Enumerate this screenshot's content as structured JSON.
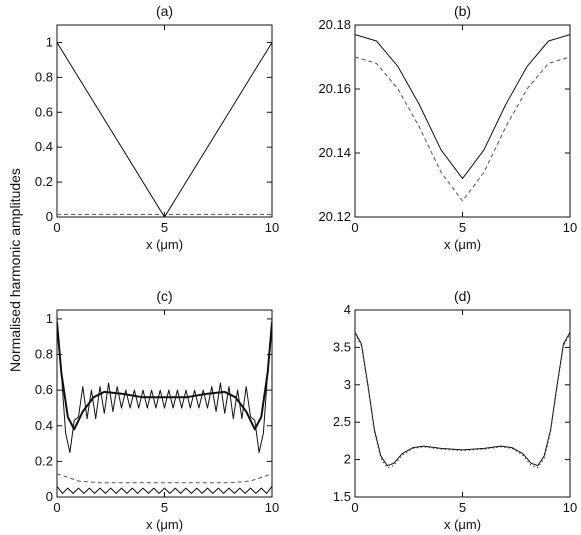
{
  "figure": {
    "ylabel": "Normalised harmonic amplitudes"
  },
  "chart_data": [
    {
      "type": "line",
      "title": "(a)",
      "xlabel": "x (μm)",
      "ylabel": "",
      "xlim": [
        0,
        10
      ],
      "ylim": [
        0,
        1.1
      ],
      "xticks": [
        0,
        5,
        10
      ],
      "yticks": [
        0,
        0.2,
        0.4,
        0.6,
        0.8,
        1
      ],
      "xtick_labels": [
        "0",
        "5",
        "10"
      ],
      "ytick_labels": [
        "0",
        "0.2",
        "0.4",
        "0.6",
        "0.8",
        "1"
      ],
      "grid": false,
      "series": [
        {
          "style": "solid",
          "x": [
            0,
            5,
            10
          ],
          "y": [
            1.0,
            0.0,
            1.0
          ]
        },
        {
          "style": "dashed",
          "x": [
            0,
            10
          ],
          "y": [
            0.015,
            0.015
          ]
        }
      ]
    },
    {
      "type": "line",
      "title": "(b)",
      "xlabel": "x (μm)",
      "ylabel": "",
      "xlim": [
        0,
        10
      ],
      "ylim": [
        20.12,
        20.18
      ],
      "xticks": [
        0,
        5,
        10
      ],
      "yticks": [
        20.12,
        20.14,
        20.16,
        20.18
      ],
      "xtick_labels": [
        "0",
        "5",
        "10"
      ],
      "ytick_labels": [
        "20.12",
        "20.14",
        "20.16",
        "20.18"
      ],
      "grid": false,
      "series": [
        {
          "style": "solid",
          "x": [
            0,
            1,
            2,
            3,
            4,
            5,
            6,
            7,
            8,
            9,
            10
          ],
          "y": [
            20.177,
            20.175,
            20.167,
            20.155,
            20.141,
            20.132,
            20.141,
            20.155,
            20.167,
            20.175,
            20.177
          ]
        },
        {
          "style": "dashed",
          "x": [
            0,
            1,
            2,
            3,
            4,
            5,
            6,
            7,
            8,
            9,
            10
          ],
          "y": [
            20.17,
            20.168,
            20.16,
            20.148,
            20.134,
            20.125,
            20.134,
            20.148,
            20.16,
            20.168,
            20.17
          ]
        }
      ]
    },
    {
      "type": "line",
      "title": "(c)",
      "xlabel": "x (μm)",
      "ylabel": "",
      "xlim": [
        0,
        10
      ],
      "ylim": [
        0,
        1.05
      ],
      "xticks": [
        0,
        5,
        10
      ],
      "yticks": [
        0,
        0.2,
        0.4,
        0.6,
        0.8,
        1
      ],
      "xtick_labels": [
        "0",
        "5",
        "10"
      ],
      "ytick_labels": [
        "0",
        "0.2",
        "0.4",
        "0.6",
        "0.8",
        "1"
      ],
      "grid": false,
      "series": [
        {
          "style": "solid-thick",
          "x": [
            0,
            0.2,
            0.5,
            0.8,
            1.2,
            1.7,
            2.2,
            3,
            4,
            5,
            6,
            7,
            7.8,
            8.3,
            8.8,
            9.2,
            9.5,
            9.8,
            10
          ],
          "y": [
            0.98,
            0.7,
            0.45,
            0.38,
            0.48,
            0.56,
            0.59,
            0.58,
            0.56,
            0.56,
            0.56,
            0.58,
            0.59,
            0.56,
            0.48,
            0.38,
            0.45,
            0.7,
            0.98
          ]
        },
        {
          "style": "solid-oscillating",
          "x": [
            0,
            0.2,
            0.4,
            0.6,
            0.8,
            1,
            1.2,
            1.4,
            1.6,
            1.8,
            2,
            2.2,
            2.4,
            2.6,
            2.8,
            3,
            3.2,
            3.4,
            3.6,
            3.8,
            4,
            4.2,
            4.4,
            4.6,
            4.8,
            5,
            5.2,
            5.4,
            5.6,
            5.8,
            6,
            6.2,
            6.4,
            6.6,
            6.8,
            7,
            7.2,
            7.4,
            7.6,
            7.8,
            8,
            8.2,
            8.4,
            8.6,
            8.8,
            9,
            9.2,
            9.4,
            9.6,
            9.8,
            10
          ],
          "y": [
            1.0,
            0.7,
            0.36,
            0.25,
            0.43,
            0.45,
            0.62,
            0.44,
            0.6,
            0.44,
            0.62,
            0.47,
            0.64,
            0.48,
            0.62,
            0.5,
            0.6,
            0.5,
            0.6,
            0.5,
            0.6,
            0.5,
            0.6,
            0.5,
            0.6,
            0.5,
            0.6,
            0.5,
            0.6,
            0.5,
            0.6,
            0.5,
            0.6,
            0.5,
            0.6,
            0.5,
            0.62,
            0.48,
            0.64,
            0.47,
            0.62,
            0.44,
            0.6,
            0.44,
            0.62,
            0.45,
            0.43,
            0.25,
            0.36,
            0.7,
            1.0
          ]
        },
        {
          "style": "dashed",
          "x": [
            0,
            0.5,
            1,
            2,
            3,
            4,
            5,
            6,
            7,
            8,
            9,
            9.5,
            10
          ],
          "y": [
            0.13,
            0.11,
            0.09,
            0.08,
            0.08,
            0.08,
            0.08,
            0.08,
            0.08,
            0.08,
            0.09,
            0.11,
            0.13
          ]
        },
        {
          "style": "solid-thin",
          "x": [
            0,
            0.25,
            0.5,
            0.75,
            1,
            1.25,
            1.5,
            1.75,
            2,
            2.25,
            2.5,
            2.75,
            3,
            3.25,
            3.5,
            3.75,
            4,
            4.25,
            4.5,
            4.75,
            5,
            5.25,
            5.5,
            5.75,
            6,
            6.25,
            6.5,
            6.75,
            7,
            7.25,
            7.5,
            7.75,
            8,
            8.25,
            8.5,
            8.75,
            9,
            9.25,
            9.5,
            9.75,
            10
          ],
          "y": [
            0.06,
            0.02,
            0.05,
            0.02,
            0.05,
            0.02,
            0.05,
            0.02,
            0.05,
            0.02,
            0.05,
            0.02,
            0.05,
            0.02,
            0.05,
            0.02,
            0.05,
            0.02,
            0.05,
            0.02,
            0.05,
            0.02,
            0.05,
            0.02,
            0.05,
            0.02,
            0.05,
            0.02,
            0.05,
            0.02,
            0.05,
            0.02,
            0.05,
            0.02,
            0.05,
            0.02,
            0.05,
            0.02,
            0.05,
            0.02,
            0.06
          ]
        }
      ]
    },
    {
      "type": "line",
      "title": "(d)",
      "xlabel": "x (μm)",
      "ylabel": "",
      "xlim": [
        0,
        10
      ],
      "ylim": [
        1.5,
        4.0
      ],
      "xticks": [
        0,
        5,
        10
      ],
      "yticks": [
        1.5,
        2,
        2.5,
        3,
        3.5,
        4
      ],
      "xtick_labels": [
        "0",
        "5",
        "10"
      ],
      "ytick_labels": [
        "1.5",
        "2",
        "2.5",
        "3",
        "3.5",
        "4"
      ],
      "grid": false,
      "series": [
        {
          "style": "solid",
          "x": [
            0,
            0.3,
            0.6,
            0.9,
            1.2,
            1.5,
            1.8,
            2.2,
            2.7,
            3.2,
            4,
            5,
            6,
            6.8,
            7.3,
            7.8,
            8.2,
            8.5,
            8.8,
            9.1,
            9.4,
            9.7,
            10
          ],
          "y": [
            3.7,
            3.55,
            3.0,
            2.4,
            2.05,
            1.92,
            1.95,
            2.08,
            2.16,
            2.18,
            2.15,
            2.13,
            2.15,
            2.18,
            2.16,
            2.08,
            1.95,
            1.92,
            2.05,
            2.4,
            3.0,
            3.55,
            3.7
          ]
        },
        {
          "style": "dotted",
          "x": [
            0,
            0.3,
            0.6,
            0.9,
            1.2,
            1.5,
            1.8,
            2.2,
            2.7,
            3.2,
            4,
            5,
            6,
            6.8,
            7.3,
            7.8,
            8.2,
            8.5,
            8.8,
            9.1,
            9.4,
            9.7,
            10
          ],
          "y": [
            3.68,
            3.52,
            2.97,
            2.37,
            2.02,
            1.89,
            1.92,
            2.06,
            2.15,
            2.17,
            2.14,
            2.12,
            2.14,
            2.17,
            2.15,
            2.06,
            1.92,
            1.89,
            2.02,
            2.37,
            2.97,
            3.52,
            3.68
          ]
        }
      ]
    }
  ]
}
